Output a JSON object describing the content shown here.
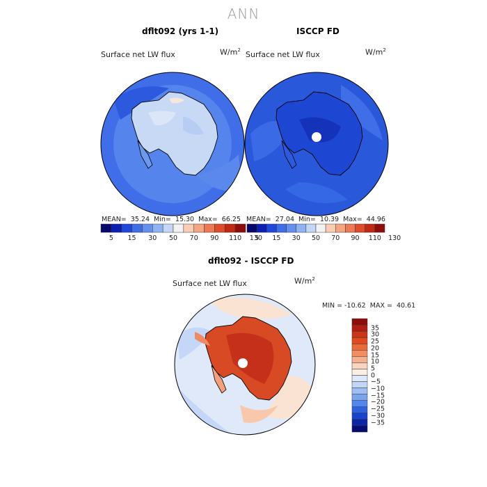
{
  "page_title": "ANN",
  "panels": {
    "top_left": {
      "title": "dflt092 (yrs 1-1)",
      "field_label": "Surface net LW flux",
      "units_base": "W/m",
      "units_exp": "2",
      "stats": "MEAN=  35.24  Min=  15.30  Max=  66.25"
    },
    "top_right": {
      "title": "ISCCP FD",
      "field_label": "Surface net LW flux",
      "units_base": "W/m",
      "units_exp": "2",
      "stats": "MEAN=  27.04  Min=  10.39  Max=  44.96"
    },
    "bottom": {
      "title": "dflt092 - ISCCP FD",
      "field_label": "Surface net LW flux",
      "units_base": "W/m",
      "units_exp": "2",
      "stats": "MIN = -10.62  MAX =  40.61"
    }
  },
  "top_colorbar": {
    "colors": [
      "#08086b",
      "#0c1fb0",
      "#2147d8",
      "#3f6ee8",
      "#6690ee",
      "#92b3f2",
      "#c4d7f7",
      "#f2f2f2",
      "#f9cdb3",
      "#f5a582",
      "#ed7a55",
      "#dd4d2c",
      "#c02a14",
      "#8e0d0a"
    ],
    "tick_labels": [
      "5",
      "15",
      "30",
      "50",
      "70",
      "90",
      "110",
      "130"
    ]
  },
  "bottom_colorbar": {
    "colors": [
      "#8e0d0a",
      "#b21e10",
      "#cc3517",
      "#e04a1f",
      "#ec6a38",
      "#f38e62",
      "#f7b08d",
      "#fad4be",
      "#fbeee3",
      "#dde9fa",
      "#c2d7f8",
      "#9ebef4",
      "#7aa3f0",
      "#5486eb",
      "#2d63e0",
      "#1a44cc",
      "#0c25a6",
      "#060d72"
    ],
    "tick_labels": [
      "35",
      "30",
      "25",
      "20",
      "15",
      "10",
      "5",
      "0",
      "−5",
      "−10",
      "−15",
      "−20",
      "−25",
      "−30",
      "−35"
    ]
  },
  "map_colors": {
    "ocean_top_left": "#3f6ee8",
    "ocean_top_right": "#2958db",
    "antarctica_top_left": "#c8d9f6",
    "antarctica_top_right": "#1d46d2",
    "ocean_bottom": "#dfe9f9",
    "antarctica_bottom": "#d84a24",
    "outline": "#000000"
  }
}
